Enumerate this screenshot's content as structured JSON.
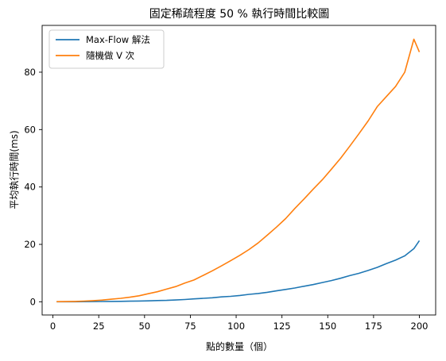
{
  "chart_data": {
    "type": "line",
    "title": "固定稀疏程度 50 % 執行時間比較圖",
    "xlabel": "點的數量（個）",
    "ylabel": "平均執行時間(ms)",
    "xlim": [
      -5.9,
      208.9
    ],
    "ylim": [
      -4.6,
      96.3
    ],
    "xticks": [
      0,
      25,
      50,
      75,
      100,
      125,
      150,
      175,
      200
    ],
    "yticks": [
      0,
      20,
      40,
      60,
      80
    ],
    "grid": false,
    "legend_position": "upper-left",
    "x": [
      2,
      7,
      12,
      17,
      22,
      27,
      32,
      37,
      42,
      47,
      52,
      57,
      62,
      67,
      72,
      77,
      82,
      87,
      92,
      97,
      102,
      107,
      112,
      117,
      122,
      127,
      132,
      137,
      142,
      147,
      152,
      157,
      162,
      167,
      172,
      177,
      182,
      187,
      192,
      197,
      200
    ],
    "series": [
      {
        "name": "Max-Flow 解法",
        "color": "#1f77b4",
        "values": [
          0.02,
          0.02,
          0.03,
          0.05,
          0.07,
          0.1,
          0.12,
          0.16,
          0.2,
          0.27,
          0.32,
          0.42,
          0.5,
          0.62,
          0.8,
          1.0,
          1.2,
          1.4,
          1.7,
          1.9,
          2.2,
          2.6,
          2.9,
          3.3,
          3.8,
          4.3,
          4.8,
          5.4,
          6.0,
          6.7,
          7.4,
          8.2,
          9.1,
          9.9,
          10.9,
          12.0,
          13.3,
          14.5,
          16.0,
          18.5,
          21.3
        ]
      },
      {
        "name": "隨機做 V 次",
        "color": "#ff7f0e",
        "values": [
          0.05,
          0.08,
          0.12,
          0.25,
          0.4,
          0.6,
          0.9,
          1.2,
          1.6,
          2.1,
          2.8,
          3.5,
          4.4,
          5.3,
          6.5,
          7.6,
          9.2,
          10.8,
          12.5,
          14.3,
          16.2,
          18.2,
          20.5,
          23.2,
          26.0,
          29.0,
          32.5,
          35.8,
          39.2,
          42.5,
          46.2,
          50.0,
          54.2,
          58.5,
          63.0,
          68.0,
          71.5,
          75.0,
          80.0,
          91.5,
          87.0
        ]
      }
    ]
  }
}
